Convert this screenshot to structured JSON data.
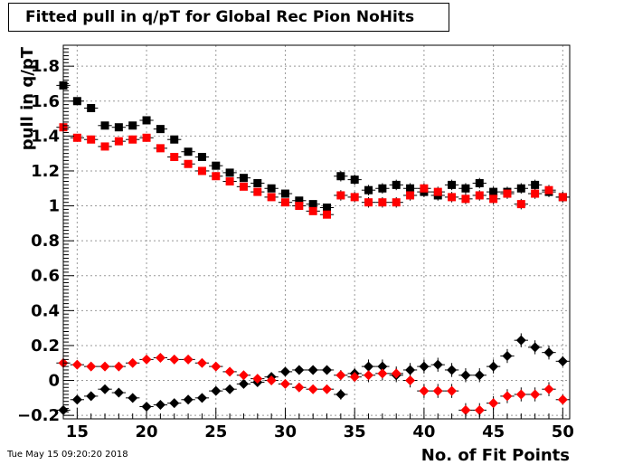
{
  "chart_data": {
    "type": "scatter",
    "title": "Fitted pull in q/pT for Global Rec Pion NoHits",
    "xlabel": "No. of Fit Points",
    "ylabel": "pull in q/pT",
    "xlim": [
      14,
      50.5
    ],
    "ylim": [
      -0.22,
      1.92
    ],
    "grid": true,
    "x_ticks": [
      15,
      20,
      25,
      30,
      35,
      40,
      45,
      50
    ],
    "y_ticks": [
      -0.2,
      0,
      0.2,
      0.4,
      0.6,
      0.8,
      1,
      1.2,
      1.4,
      1.6,
      1.8
    ],
    "y_tick_labels": [
      "−0.2",
      "0",
      "0.2",
      "0.4",
      "0.6",
      "0.8",
      "1",
      "1.2",
      "1.4",
      "1.6",
      "1.8"
    ],
    "x": [
      14,
      15,
      16,
      17,
      18,
      19,
      20,
      21,
      22,
      23,
      24,
      25,
      26,
      27,
      28,
      29,
      30,
      31,
      32,
      33,
      34,
      35,
      36,
      37,
      38,
      39,
      40,
      41,
      42,
      43,
      44,
      45,
      46,
      47,
      48,
      49,
      50
    ],
    "series": [
      {
        "marker": "square",
        "color": "#000000",
        "values": [
          1.69,
          1.6,
          1.56,
          1.46,
          1.45,
          1.46,
          1.49,
          1.44,
          1.38,
          1.31,
          1.28,
          1.23,
          1.19,
          1.16,
          1.13,
          1.1,
          1.07,
          1.03,
          1.01,
          0.99,
          1.17,
          1.15,
          1.09,
          1.1,
          1.12,
          1.1,
          1.08,
          1.06,
          1.12,
          1.1,
          1.13,
          1.08,
          1.08,
          1.1,
          1.12,
          1.08,
          1.05
        ],
        "errors": [
          0.02,
          0.02,
          0.02,
          0.02,
          0.02,
          0.02,
          0.02,
          0.02,
          0.02,
          0.02,
          0.02,
          0.02,
          0.02,
          0.02,
          0.02,
          0.02,
          0.02,
          0.02,
          0.02,
          0.02,
          0.03,
          0.03,
          0.03,
          0.03,
          0.03,
          0.03,
          0.03,
          0.03,
          0.03,
          0.03,
          0.03,
          0.03,
          0.03,
          0.03,
          0.03,
          0.03,
          0.03
        ]
      },
      {
        "marker": "square",
        "color": "#ff0000",
        "values": [
          1.45,
          1.39,
          1.38,
          1.34,
          1.37,
          1.38,
          1.39,
          1.33,
          1.28,
          1.24,
          1.2,
          1.17,
          1.14,
          1.11,
          1.08,
          1.05,
          1.02,
          1.0,
          0.97,
          0.95,
          1.06,
          1.05,
          1.02,
          1.02,
          1.02,
          1.06,
          1.1,
          1.08,
          1.05,
          1.04,
          1.06,
          1.04,
          1.07,
          1.01,
          1.07,
          1.09,
          1.05
        ],
        "errors": [
          0.02,
          0.02,
          0.02,
          0.02,
          0.02,
          0.02,
          0.02,
          0.02,
          0.02,
          0.02,
          0.02,
          0.02,
          0.02,
          0.02,
          0.02,
          0.02,
          0.02,
          0.02,
          0.02,
          0.02,
          0.03,
          0.03,
          0.03,
          0.03,
          0.03,
          0.03,
          0.03,
          0.03,
          0.03,
          0.03,
          0.03,
          0.03,
          0.03,
          0.03,
          0.03,
          0.03,
          0.03
        ]
      },
      {
        "marker": "diamond",
        "color": "#000000",
        "values": [
          -0.17,
          -0.11,
          -0.09,
          -0.05,
          -0.07,
          -0.1,
          -0.15,
          -0.14,
          -0.13,
          -0.11,
          -0.1,
          -0.06,
          -0.05,
          -0.02,
          -0.01,
          0.02,
          0.05,
          0.06,
          0.06,
          0.06,
          -0.08,
          0.04,
          0.08,
          0.08,
          0.03,
          0.06,
          0.08,
          0.09,
          0.06,
          0.03,
          0.03,
          0.08,
          0.14,
          0.23,
          0.19,
          0.16,
          0.11
        ],
        "errors": [
          0.02,
          0.02,
          0.02,
          0.02,
          0.02,
          0.02,
          0.02,
          0.02,
          0.02,
          0.02,
          0.02,
          0.02,
          0.02,
          0.02,
          0.02,
          0.02,
          0.02,
          0.02,
          0.02,
          0.02,
          0.03,
          0.03,
          0.04,
          0.04,
          0.04,
          0.04,
          0.04,
          0.04,
          0.04,
          0.04,
          0.04,
          0.04,
          0.04,
          0.04,
          0.04,
          0.04,
          0.03
        ]
      },
      {
        "marker": "diamond",
        "color": "#ff0000",
        "values": [
          0.1,
          0.09,
          0.08,
          0.08,
          0.08,
          0.1,
          0.12,
          0.13,
          0.12,
          0.12,
          0.1,
          0.08,
          0.05,
          0.03,
          0.01,
          0.0,
          -0.02,
          -0.04,
          -0.05,
          -0.05,
          0.03,
          0.02,
          0.03,
          0.04,
          0.04,
          0.0,
          -0.06,
          -0.06,
          -0.06,
          -0.17,
          -0.17,
          -0.13,
          -0.09,
          -0.08,
          -0.08,
          -0.05,
          -0.11
        ],
        "errors": [
          0.02,
          0.02,
          0.02,
          0.02,
          0.02,
          0.02,
          0.02,
          0.02,
          0.02,
          0.02,
          0.02,
          0.02,
          0.02,
          0.02,
          0.02,
          0.02,
          0.02,
          0.02,
          0.02,
          0.02,
          0.03,
          0.03,
          0.04,
          0.04,
          0.04,
          0.04,
          0.04,
          0.04,
          0.04,
          0.04,
          0.04,
          0.04,
          0.04,
          0.04,
          0.04,
          0.04,
          0.03
        ]
      }
    ]
  },
  "timestamp": "Tue May 15 09:20:20 2018"
}
